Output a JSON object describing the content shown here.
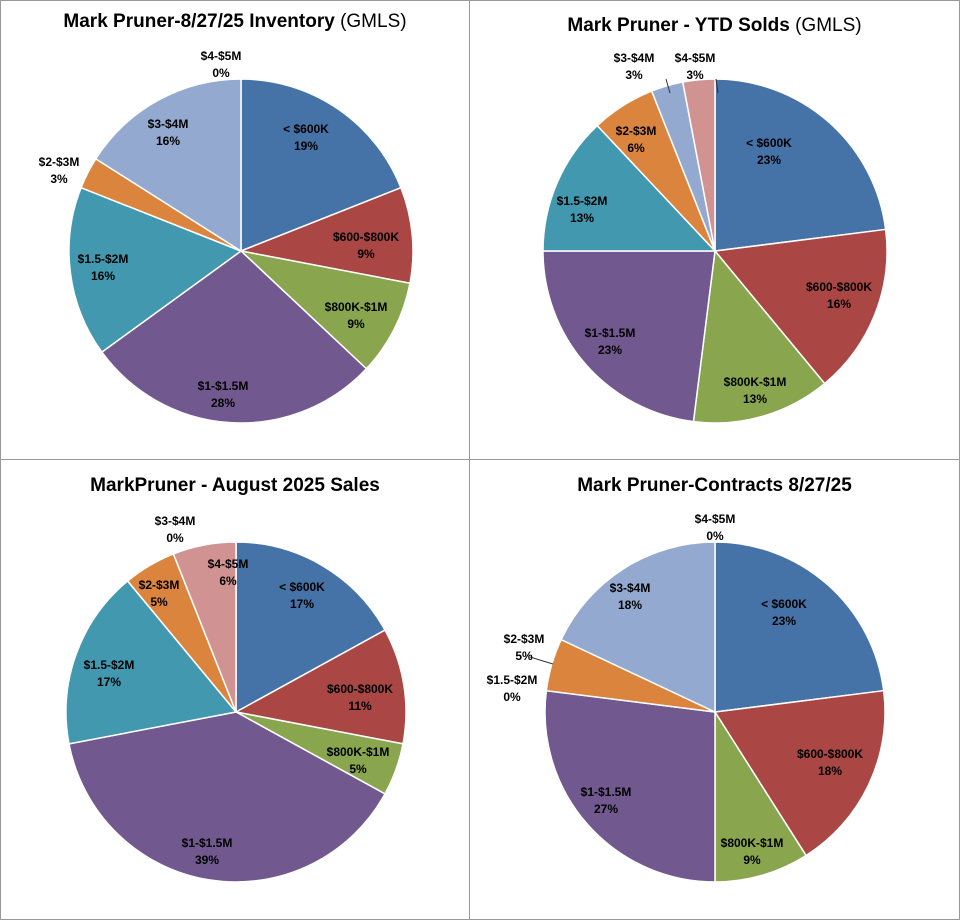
{
  "chart_data": [
    {
      "type": "pie",
      "title": "Mark Pruner-8/27/25  Inventory",
      "title_suffix": "(GMLS)",
      "categories": [
        "< $600K",
        "$600-$800K",
        "$800K-$1M",
        "$1-$1.5M",
        "$1.5-$2M",
        "$2-$3M",
        "$3-$4M",
        "$4-$5M"
      ],
      "values": [
        19,
        9,
        9,
        28,
        16,
        3,
        16,
        0
      ],
      "labels": [
        "19%",
        "9%",
        "9%",
        "28%",
        "16%",
        "3%",
        "16%",
        "0%"
      ]
    },
    {
      "type": "pie",
      "title": "Mark Pruner - YTD Solds",
      "title_suffix": "(GMLS)",
      "categories": [
        "< $600K",
        "$600-$800K",
        "$800K-$1M",
        "$1-$1.5M",
        "$1.5-$2M",
        "$2-$3M",
        "$3-$4M",
        "$4-$5M"
      ],
      "values": [
        23,
        16,
        13,
        23,
        13,
        6,
        3,
        3
      ],
      "labels": [
        "23%",
        "16%",
        "13%",
        "23%",
        "13%",
        "6%",
        "3%",
        "3%"
      ]
    },
    {
      "type": "pie",
      "title": "MarkPruner -  August 2025 Sales",
      "title_suffix": "",
      "categories": [
        "< $600K",
        "$600-$800K",
        "$800K-$1M",
        "$1-$1.5M",
        "$1.5-$2M",
        "$2-$3M",
        "$3-$4M",
        "$4-$5M"
      ],
      "values": [
        17,
        11,
        5,
        39,
        17,
        5,
        0,
        6
      ],
      "labels": [
        "17%",
        "11%",
        "5%",
        "39%",
        "17%",
        "5%",
        "0%",
        "6%"
      ]
    },
    {
      "type": "pie",
      "title": "Mark Pruner-Contracts 8/27/25",
      "title_suffix": "",
      "categories": [
        "< $600K",
        "$600-$800K",
        "$800K-$1M",
        "$1-$1.5M",
        "$1.5-$2M",
        "$2-$3M",
        "$3-$4M",
        "$4-$5M"
      ],
      "values": [
        23,
        18,
        9,
        27,
        0,
        5,
        18,
        0
      ],
      "labels": [
        "23%",
        "18%",
        "9%",
        "27%",
        "0%",
        "5%",
        "18%",
        "0%"
      ]
    }
  ],
  "colors": [
    "#4572A7",
    "#AA4643",
    "#89A54E",
    "#71588F",
    "#4198AF",
    "#DB843D",
    "#93A9CF",
    "#D19392"
  ]
}
